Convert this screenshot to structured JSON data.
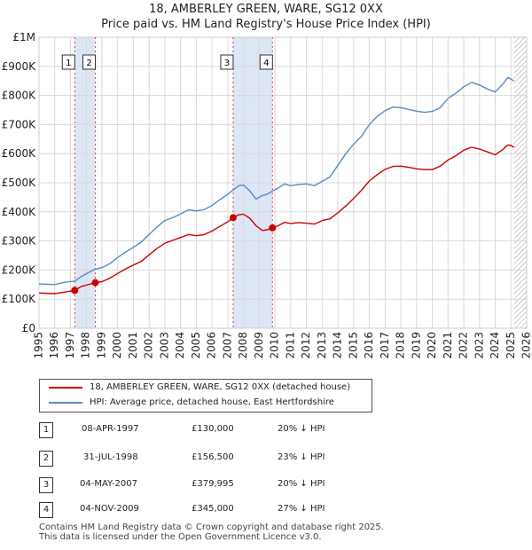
{
  "chart_data": {
    "type": "line",
    "title": "18, AMBERLEY GREEN, WARE, SG12 0XX",
    "subtitle": "Price paid vs. HM Land Registry's House Price Index (HPI)",
    "xlim": [
      1995,
      2026
    ],
    "ylim": [
      0,
      1000000
    ],
    "x_ticks": [
      "1995",
      "1996",
      "1997",
      "1998",
      "1999",
      "2000",
      "2001",
      "2002",
      "2003",
      "2004",
      "2005",
      "2006",
      "2007",
      "2008",
      "2009",
      "2010",
      "2011",
      "2012",
      "2013",
      "2014",
      "2015",
      "2016",
      "2017",
      "2018",
      "2019",
      "2020",
      "2021",
      "2022",
      "2023",
      "2024",
      "2025",
      "2026"
    ],
    "y_ticks": [
      {
        "value": 0,
        "label": "£0"
      },
      {
        "value": 100000,
        "label": "£100K"
      },
      {
        "value": 200000,
        "label": "£200K"
      },
      {
        "value": 300000,
        "label": "£300K"
      },
      {
        "value": 400000,
        "label": "£400K"
      },
      {
        "value": 500000,
        "label": "£500K"
      },
      {
        "value": 600000,
        "label": "£600K"
      },
      {
        "value": 700000,
        "label": "£700K"
      },
      {
        "value": 800000,
        "label": "£800K"
      },
      {
        "value": 900000,
        "label": "£900K"
      },
      {
        "value": 1000000,
        "label": "£1M"
      }
    ],
    "grid": true,
    "forecast_hatch_start": 2025.2,
    "shaded_spans": [
      [
        1997.27,
        1998.58
      ],
      [
        2007.34,
        2009.84
      ]
    ],
    "series": [
      {
        "name": "18, AMBERLEY GREEN, WARE, SG12 0XX (detached house)",
        "color": "#cc0000",
        "points": [
          [
            1995.0,
            121000
          ],
          [
            1996.0,
            119000
          ],
          [
            1996.6,
            124000
          ],
          [
            1997.27,
            130000
          ],
          [
            1997.7,
            144000
          ],
          [
            1998.2,
            151000
          ],
          [
            1998.58,
            156500
          ],
          [
            1999.0,
            160000
          ],
          [
            1999.5,
            172000
          ],
          [
            2000.0,
            188000
          ],
          [
            2000.5,
            204000
          ],
          [
            2001.0,
            217000
          ],
          [
            2001.5,
            230000
          ],
          [
            2002.0,
            252000
          ],
          [
            2002.5,
            274000
          ],
          [
            2003.0,
            292000
          ],
          [
            2003.5,
            302000
          ],
          [
            2004.0,
            312000
          ],
          [
            2004.5,
            322000
          ],
          [
            2005.0,
            318000
          ],
          [
            2005.5,
            322000
          ],
          [
            2006.0,
            334000
          ],
          [
            2006.5,
            350000
          ],
          [
            2007.0,
            366000
          ],
          [
            2007.34,
            379995
          ],
          [
            2007.7,
            390000
          ],
          [
            2008.0,
            392000
          ],
          [
            2008.4,
            378000
          ],
          [
            2008.8,
            352000
          ],
          [
            2009.2,
            336000
          ],
          [
            2009.5,
            338000
          ],
          [
            2009.84,
            345000
          ],
          [
            2010.2,
            352000
          ],
          [
            2010.6,
            364000
          ],
          [
            2011.0,
            360000
          ],
          [
            2011.5,
            363000
          ],
          [
            2012.0,
            361000
          ],
          [
            2012.5,
            358000
          ],
          [
            2013.0,
            370000
          ],
          [
            2013.5,
            376000
          ],
          [
            2014.0,
            397000
          ],
          [
            2014.5,
            420000
          ],
          [
            2015.0,
            446000
          ],
          [
            2015.5,
            474000
          ],
          [
            2016.0,
            506000
          ],
          [
            2016.5,
            528000
          ],
          [
            2017.0,
            546000
          ],
          [
            2017.5,
            556000
          ],
          [
            2018.0,
            557000
          ],
          [
            2018.5,
            553000
          ],
          [
            2019.0,
            548000
          ],
          [
            2019.5,
            545000
          ],
          [
            2020.0,
            545000
          ],
          [
            2020.5,
            557000
          ],
          [
            2021.0,
            578000
          ],
          [
            2021.5,
            593000
          ],
          [
            2022.0,
            612000
          ],
          [
            2022.5,
            622000
          ],
          [
            2023.0,
            616000
          ],
          [
            2023.5,
            606000
          ],
          [
            2024.0,
            596000
          ],
          [
            2024.5,
            615000
          ],
          [
            2024.8,
            630000
          ],
          [
            2025.0,
            628000
          ],
          [
            2025.2,
            622000
          ]
        ]
      },
      {
        "name": "HPI: Average price, detached house, East Hertfordshire",
        "color": "#5a8ac6",
        "points": [
          [
            1995.0,
            152000
          ],
          [
            1996.0,
            150000
          ],
          [
            1996.6,
            158000
          ],
          [
            1997.27,
            162000
          ],
          [
            1997.7,
            178000
          ],
          [
            1998.2,
            193000
          ],
          [
            1998.58,
            203000
          ],
          [
            1999.0,
            208000
          ],
          [
            1999.5,
            222000
          ],
          [
            2000.0,
            243000
          ],
          [
            2000.5,
            262000
          ],
          [
            2001.0,
            278000
          ],
          [
            2001.5,
            296000
          ],
          [
            2002.0,
            322000
          ],
          [
            2002.5,
            348000
          ],
          [
            2003.0,
            370000
          ],
          [
            2003.5,
            380000
          ],
          [
            2004.0,
            393000
          ],
          [
            2004.5,
            407000
          ],
          [
            2005.0,
            403000
          ],
          [
            2005.5,
            408000
          ],
          [
            2006.0,
            422000
          ],
          [
            2006.5,
            442000
          ],
          [
            2007.0,
            460000
          ],
          [
            2007.34,
            475000
          ],
          [
            2007.7,
            490000
          ],
          [
            2008.0,
            492000
          ],
          [
            2008.4,
            472000
          ],
          [
            2008.8,
            444000
          ],
          [
            2009.2,
            456000
          ],
          [
            2009.5,
            460000
          ],
          [
            2009.84,
            472000
          ],
          [
            2010.2,
            482000
          ],
          [
            2010.6,
            496000
          ],
          [
            2011.0,
            490000
          ],
          [
            2011.5,
            494000
          ],
          [
            2012.0,
            496000
          ],
          [
            2012.5,
            490000
          ],
          [
            2013.0,
            505000
          ],
          [
            2013.5,
            520000
          ],
          [
            2014.0,
            560000
          ],
          [
            2014.5,
            600000
          ],
          [
            2015.0,
            632000
          ],
          [
            2015.5,
            660000
          ],
          [
            2016.0,
            700000
          ],
          [
            2016.5,
            728000
          ],
          [
            2017.0,
            748000
          ],
          [
            2017.5,
            760000
          ],
          [
            2018.0,
            758000
          ],
          [
            2018.5,
            752000
          ],
          [
            2019.0,
            746000
          ],
          [
            2019.5,
            742000
          ],
          [
            2020.0,
            745000
          ],
          [
            2020.5,
            758000
          ],
          [
            2021.0,
            790000
          ],
          [
            2021.5,
            808000
          ],
          [
            2022.0,
            830000
          ],
          [
            2022.5,
            845000
          ],
          [
            2023.0,
            836000
          ],
          [
            2023.5,
            822000
          ],
          [
            2024.0,
            812000
          ],
          [
            2024.5,
            840000
          ],
          [
            2024.8,
            862000
          ],
          [
            2025.0,
            856000
          ],
          [
            2025.2,
            850000
          ]
        ]
      }
    ],
    "markers": [
      {
        "label": "1",
        "x": 1997.27,
        "y": 130000
      },
      {
        "label": "2",
        "x": 1998.58,
        "y": 156500
      },
      {
        "label": "3",
        "x": 2007.34,
        "y": 379995
      },
      {
        "label": "4",
        "x": 2009.84,
        "y": 345000
      }
    ]
  },
  "legend": {
    "property_label": "18, AMBERLEY GREEN, WARE, SG12 0XX (detached house)",
    "hpi_label": "HPI: Average price, detached house, East Hertfordshire"
  },
  "transactions": [
    {
      "num": "1",
      "date": "08-APR-1997",
      "price": "£130,000",
      "hpi": "20% ↓ HPI"
    },
    {
      "num": "2",
      "date": "31-JUL-1998",
      "price": "£156,500",
      "hpi": "23% ↓ HPI"
    },
    {
      "num": "3",
      "date": "04-MAY-2007",
      "price": "£379,995",
      "hpi": "20% ↓ HPI"
    },
    {
      "num": "4",
      "date": "04-NOV-2009",
      "price": "£345,000",
      "hpi": "27% ↓ HPI"
    }
  ],
  "footer": {
    "line1": "Contains HM Land Registry data © Crown copyright and database right 2025.",
    "line2": "This data is licensed under the Open Government Licence v3.0."
  },
  "colors": {
    "property": "#cc0000",
    "hpi": "#5a8ac6",
    "span_fill": "#dce6f5",
    "grid": "#d8d8d8"
  }
}
